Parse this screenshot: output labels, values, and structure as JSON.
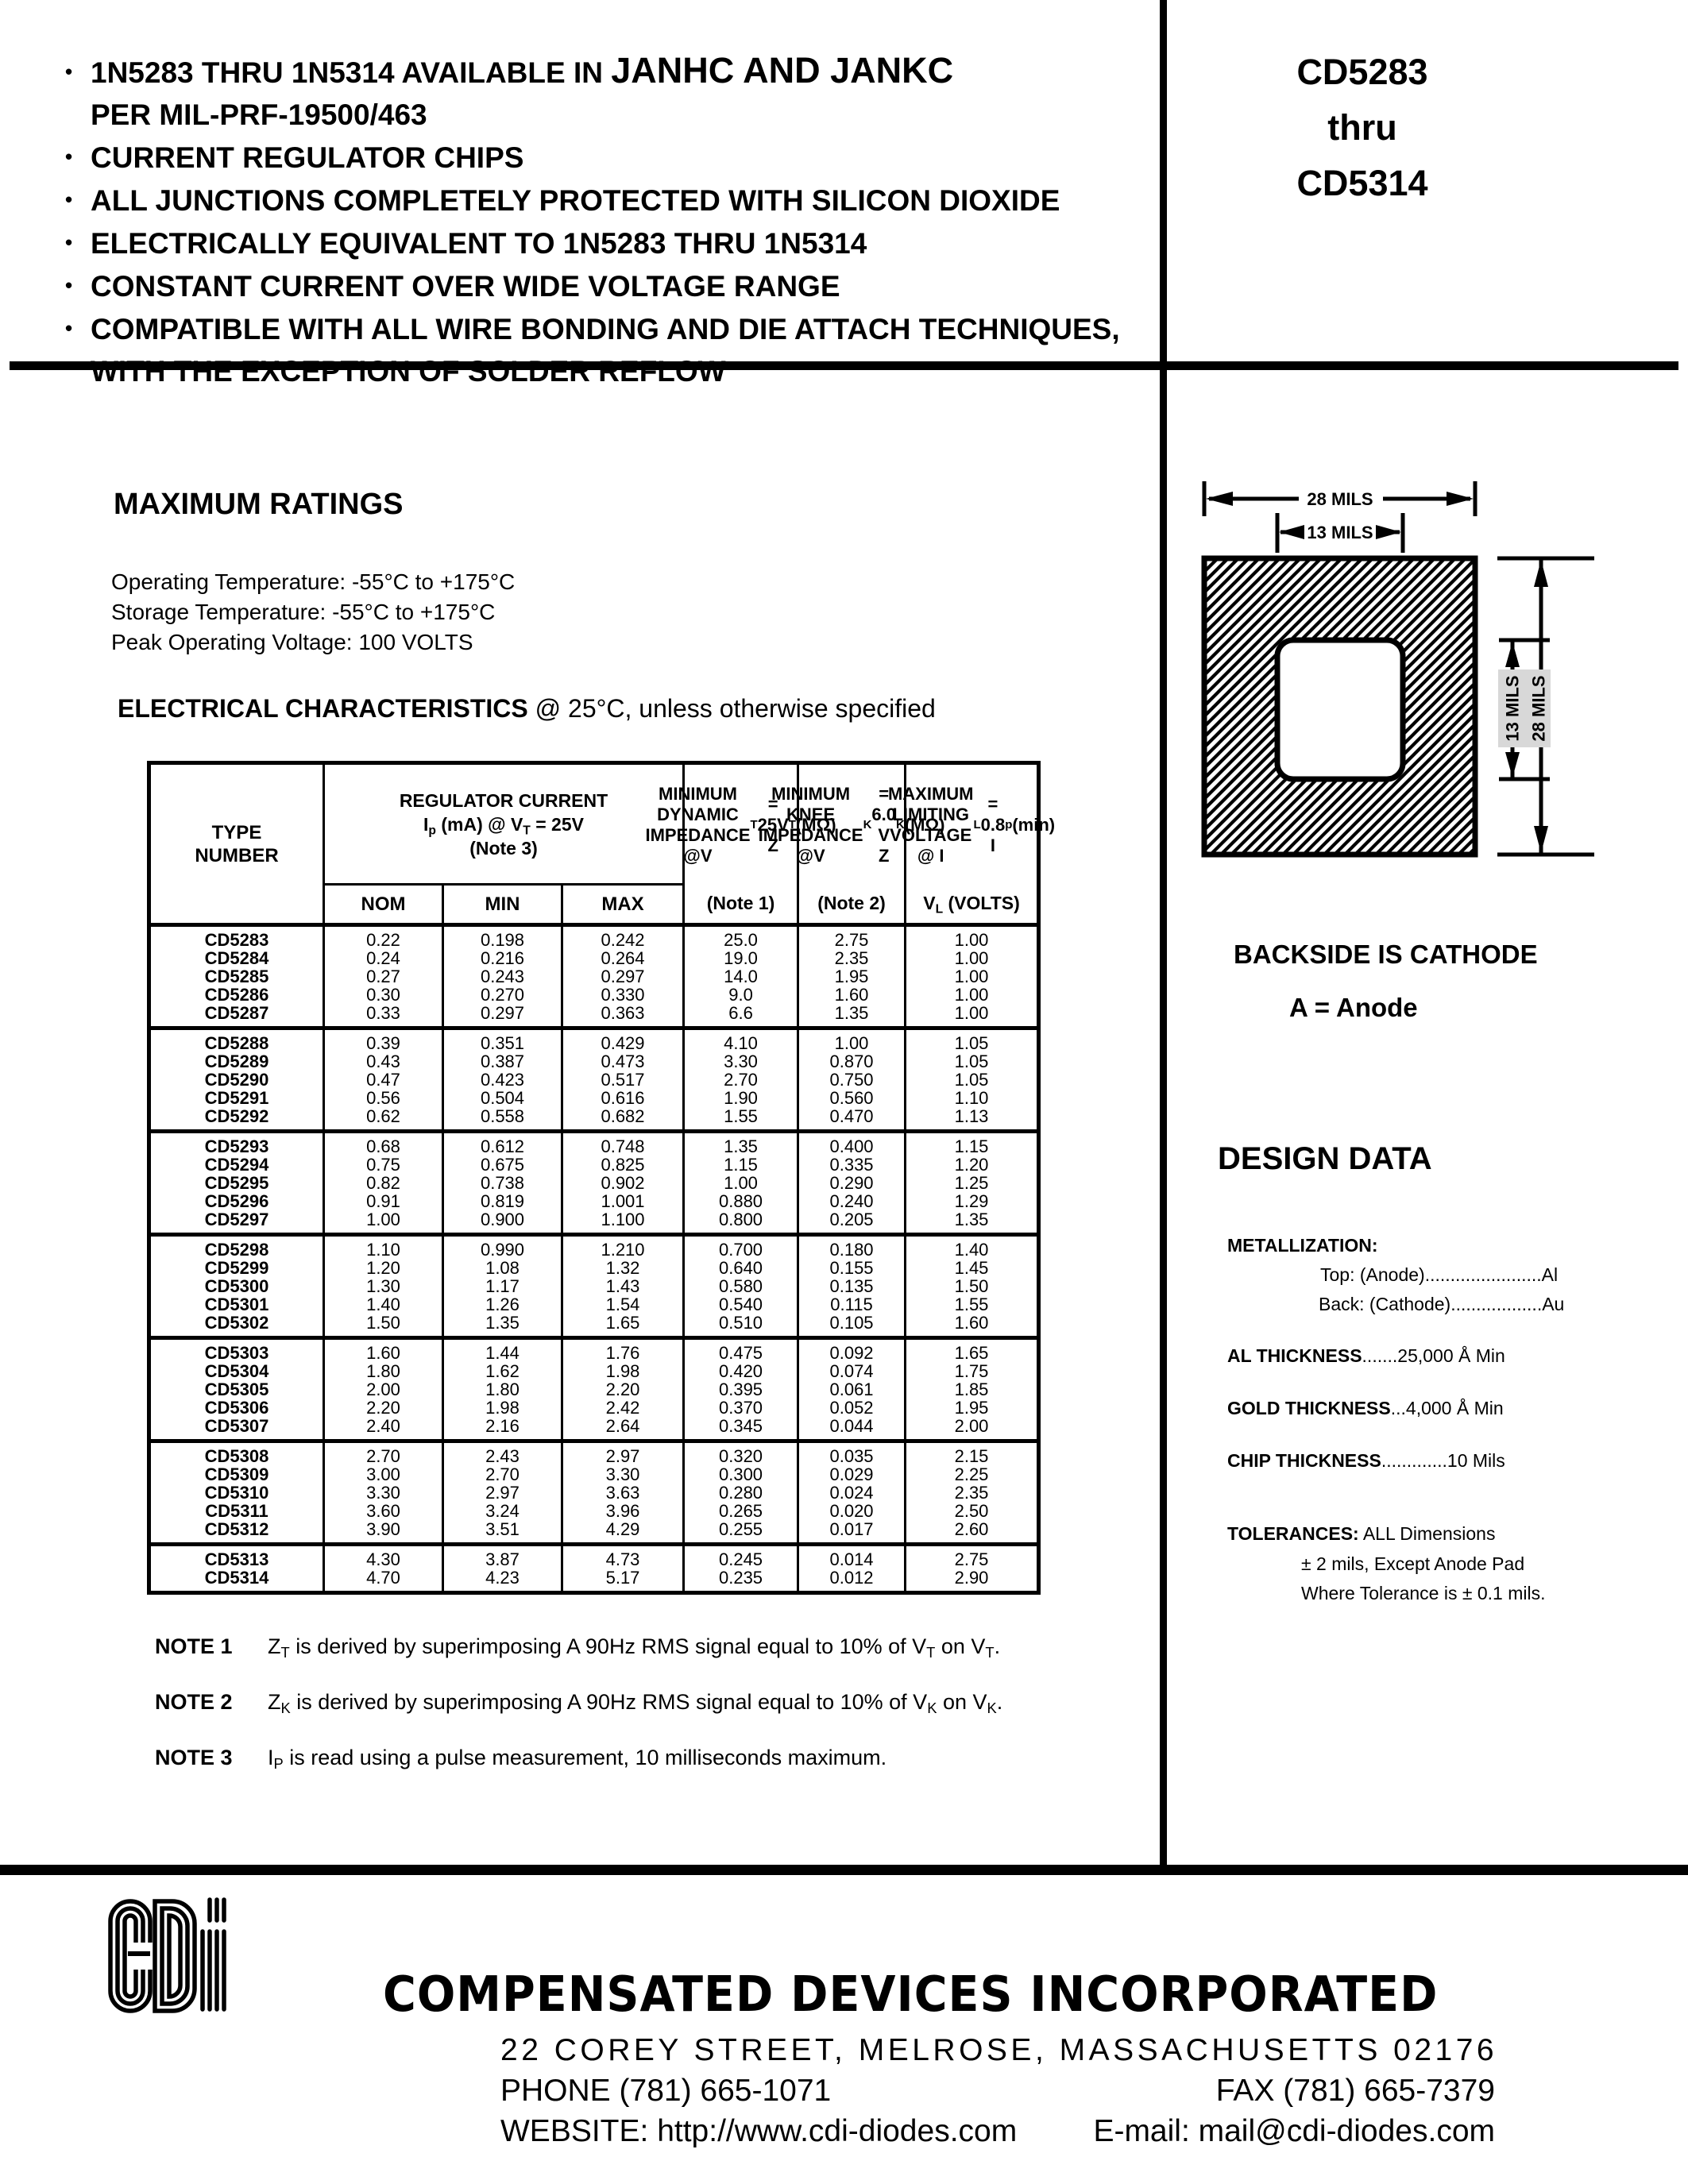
{
  "header": {
    "bullet_char": "•",
    "line1_lead": "1N5283 THRU 1N5314 AVAILABLE IN ",
    "line1_big": "JANHC AND JANKC",
    "line1_cont": "PER MIL-PRF-19500/463",
    "bullet2": "CURRENT REGULATOR CHIPS",
    "bullet3": "ALL JUNCTIONS COMPLETELY PROTECTED WITH SILICON DIOXIDE",
    "bullet4": "ELECTRICALLY EQUIVALENT TO 1N5283 THRU 1N5314",
    "bullet5": "CONSTANT CURRENT OVER WIDE VOLTAGE RANGE",
    "bullet6": "COMPATIBLE WITH ALL WIRE BONDING AND DIE ATTACH TECHNIQUES,",
    "bullet6_cont": "WITH THE EXCEPTION OF SOLDER REFLOW",
    "part_top": "CD5283",
    "part_mid": "thru",
    "part_bot": "CD5314"
  },
  "max_ratings": {
    "title": "MAXIMUM RATINGS",
    "items": [
      "Operating Temperature: -55°C to +175°C",
      "Storage Temperature: -55°C to +175°C",
      "Peak Operating Voltage: 100 VOLTS"
    ]
  },
  "elec_title": {
    "bold": "ELECTRICAL CHARACTERISTICS",
    "rest": " @ 25°C, unless otherwise specified"
  },
  "table": {
    "headers": {
      "type": "TYPE\nNUMBER",
      "regulator_group": "REGULATOR CURRENT\nI_p_ (mA) @ V_T_ = 25V\n(Note 3)",
      "sub": [
        "NOM",
        "MIN",
        "MAX"
      ],
      "dynamic_main": "MINIMUM\nDYNAMIC\nIMPEDANCE\n@V_T_ = 25V\nZ_T_ (MΩ)",
      "dynamic_note": "(Note 1)",
      "knee_main": "MINIMUM\nKNEE\nIMPEDANCE\n@V_K_ = 6.0 V\nZ_K_ (MΩ)",
      "knee_note": "(Note 2)",
      "limiting_main": "MAXIMUM\nLIMITING\nVOLTAGE\n@ I_L_ = 0.8 I_p_ (min)",
      "limiting_note": "V_L_ (VOLTS)"
    },
    "groups": [
      {
        "rows": [
          [
            "CD5283",
            "0.22",
            "0.198",
            "0.242",
            "25.0",
            "2.75",
            "1.00"
          ],
          [
            "CD5284",
            "0.24",
            "0.216",
            "0.264",
            "19.0",
            "2.35",
            "1.00"
          ],
          [
            "CD5285",
            "0.27",
            "0.243",
            "0.297",
            "14.0",
            "1.95",
            "1.00"
          ],
          [
            "CD5286",
            "0.30",
            "0.270",
            "0.330",
            "9.0",
            "1.60",
            "1.00"
          ],
          [
            "CD5287",
            "0.33",
            "0.297",
            "0.363",
            "6.6",
            "1.35",
            "1.00"
          ]
        ]
      },
      {
        "rows": [
          [
            "CD5288",
            "0.39",
            "0.351",
            "0.429",
            "4.10",
            "1.00",
            "1.05"
          ],
          [
            "CD5289",
            "0.43",
            "0.387",
            "0.473",
            "3.30",
            "0.870",
            "1.05"
          ],
          [
            "CD5290",
            "0.47",
            "0.423",
            "0.517",
            "2.70",
            "0.750",
            "1.05"
          ],
          [
            "CD5291",
            "0.56",
            "0.504",
            "0.616",
            "1.90",
            "0.560",
            "1.10"
          ],
          [
            "CD5292",
            "0.62",
            "0.558",
            "0.682",
            "1.55",
            "0.470",
            "1.13"
          ]
        ]
      },
      {
        "rows": [
          [
            "CD5293",
            "0.68",
            "0.612",
            "0.748",
            "1.35",
            "0.400",
            "1.15"
          ],
          [
            "CD5294",
            "0.75",
            "0.675",
            "0.825",
            "1.15",
            "0.335",
            "1.20"
          ],
          [
            "CD5295",
            "0.82",
            "0.738",
            "0.902",
            "1.00",
            "0.290",
            "1.25"
          ],
          [
            "CD5296",
            "0.91",
            "0.819",
            "1.001",
            "0.880",
            "0.240",
            "1.29"
          ],
          [
            "CD5297",
            "1.00",
            "0.900",
            "1.100",
            "0.800",
            "0.205",
            "1.35"
          ]
        ]
      },
      {
        "rows": [
          [
            "CD5298",
            "1.10",
            "0.990",
            "1.210",
            "0.700",
            "0.180",
            "1.40"
          ],
          [
            "CD5299",
            "1.20",
            "1.08",
            "1.32",
            "0.640",
            "0.155",
            "1.45"
          ],
          [
            "CD5300",
            "1.30",
            "1.17",
            "1.43",
            "0.580",
            "0.135",
            "1.50"
          ],
          [
            "CD5301",
            "1.40",
            "1.26",
            "1.54",
            "0.540",
            "0.115",
            "1.55"
          ],
          [
            "CD5302",
            "1.50",
            "1.35",
            "1.65",
            "0.510",
            "0.105",
            "1.60"
          ]
        ]
      },
      {
        "rows": [
          [
            "CD5303",
            "1.60",
            "1.44",
            "1.76",
            "0.475",
            "0.092",
            "1.65"
          ],
          [
            "CD5304",
            "1.80",
            "1.62",
            "1.98",
            "0.420",
            "0.074",
            "1.75"
          ],
          [
            "CD5305",
            "2.00",
            "1.80",
            "2.20",
            "0.395",
            "0.061",
            "1.85"
          ],
          [
            "CD5306",
            "2.20",
            "1.98",
            "2.42",
            "0.370",
            "0.052",
            "1.95"
          ],
          [
            "CD5307",
            "2.40",
            "2.16",
            "2.64",
            "0.345",
            "0.044",
            "2.00"
          ]
        ]
      },
      {
        "rows": [
          [
            "CD5308",
            "2.70",
            "2.43",
            "2.97",
            "0.320",
            "0.035",
            "2.15"
          ],
          [
            "CD5309",
            "3.00",
            "2.70",
            "3.30",
            "0.300",
            "0.029",
            "2.25"
          ],
          [
            "CD5310",
            "3.30",
            "2.97",
            "3.63",
            "0.280",
            "0.024",
            "2.35"
          ],
          [
            "CD5311",
            "3.60",
            "3.24",
            "3.96",
            "0.265",
            "0.020",
            "2.50"
          ],
          [
            "CD5312",
            "3.90",
            "3.51",
            "4.29",
            "0.255",
            "0.017",
            "2.60"
          ]
        ]
      },
      {
        "rows": [
          [
            "CD5313",
            "4.30",
            "3.87",
            "4.73",
            "0.245",
            "0.014",
            "2.75"
          ],
          [
            "CD5314",
            "4.70",
            "4.23",
            "5.17",
            "0.235",
            "0.012",
            "2.90"
          ]
        ]
      }
    ]
  },
  "notes": [
    {
      "label": "NOTE 1",
      "text": "Z_T_ is derived by superimposing A 90Hz RMS signal equal to 10% of V_T_ on V_T_."
    },
    {
      "label": "NOTE 2",
      "text": "Z_K_ is derived by superimposing A 90Hz RMS signal equal to 10% of V_K_ on V_K_."
    },
    {
      "label": "NOTE 3",
      "text": "I_P_ is read using a pulse measurement, 10 milliseconds maximum."
    }
  ],
  "diagram": {
    "dim_top_outer": "28 MILS",
    "dim_top_inner": "13 MILS",
    "dim_right_inner": "13 MILS",
    "dim_right_outer": "28 MILS",
    "backside": "BACKSIDE IS CATHODE",
    "anode": "A = Anode"
  },
  "design_data": {
    "title": "DESIGN DATA",
    "metallization_label": "METALLIZATION:",
    "metallization_top": "Top: (Anode).......................Al",
    "metallization_back": "Back: (Cathode)..................Au",
    "al_label": "AL THICKNESS",
    "al_value": ".......25,000 Å Min",
    "gold_label": "GOLD THICKNESS",
    "gold_value": "...4,000 Å Min",
    "chip_label": "CHIP THICKNESS",
    "chip_value": ".............10 Mils",
    "tolerances_label": "TOLERANCES:",
    "tolerances_rest": " ALL Dimensions",
    "tolerances_line2": "± 2 mils, Except Anode Pad",
    "tolerances_line3": "Where Tolerance is ± 0.1 mils."
  },
  "footer": {
    "company": "COMPENSATED DEVICES INCORPORATED",
    "address": "22 COREY STREET, MELROSE, MASSACHUSETTS 02176",
    "phone": "PHONE (781) 665-1071",
    "fax": "FAX (781) 665-7379",
    "website": "WEBSITE: http://www.cdi-diodes.com",
    "email": "E-mail: mail@cdi-diodes.com"
  }
}
